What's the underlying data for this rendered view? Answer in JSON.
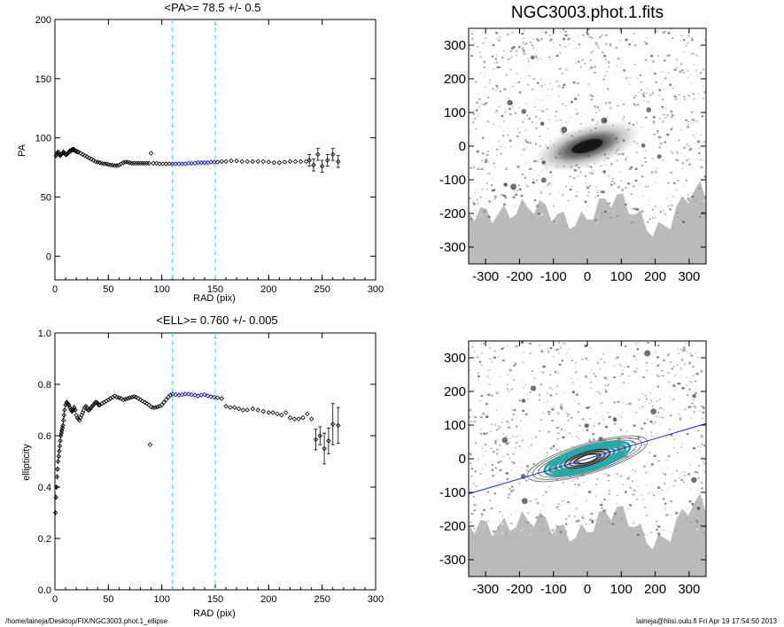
{
  "footer": {
    "left": "/home/laineja/Desktop/FIX/NGC3003.phot.1_ellipse",
    "right": "laineja@hiisi.oulu.fi  Fri Apr 19 17:54:50 2013"
  },
  "colors": {
    "axis": "#000000",
    "marker": "#000000",
    "fit_points": "#0000b0",
    "cut_lines": "#33dddd",
    "galaxy_bg": "#bbbbbb",
    "contour_fill": "#2aa6a6",
    "major_axis_line": "#2233bb"
  },
  "chart_data": [
    {
      "id": "pa",
      "type": "scatter",
      "title": "<PA>=  78.5 +/-   0.5",
      "xlabel": "RAD (pix)",
      "ylabel": "PA",
      "xlim": [
        0,
        300
      ],
      "ylim": [
        -20,
        200
      ],
      "xticks": [
        "0",
        "50",
        "100",
        "150",
        "200",
        "250",
        "300"
      ],
      "yticks": [
        "0",
        "50",
        "100",
        "150",
        "200"
      ],
      "cut_lines_x": [
        110,
        150
      ],
      "fit_range": [
        110,
        150
      ],
      "points": [
        [
          1,
          85
        ],
        [
          2,
          87
        ],
        [
          3,
          88
        ],
        [
          4,
          86
        ],
        [
          5,
          85
        ],
        [
          6,
          86
        ],
        [
          7,
          87
        ],
        [
          8,
          88
        ],
        [
          9,
          87
        ],
        [
          10,
          86
        ],
        [
          11,
          86
        ],
        [
          12,
          87
        ],
        [
          13,
          88
        ],
        [
          14,
          89
        ],
        [
          15,
          89
        ],
        [
          16,
          90
        ],
        [
          17,
          90
        ],
        [
          18,
          90
        ],
        [
          19,
          89
        ],
        [
          20,
          89
        ],
        [
          21,
          88
        ],
        [
          22,
          88
        ],
        [
          24,
          87
        ],
        [
          26,
          86
        ],
        [
          28,
          85
        ],
        [
          30,
          84
        ],
        [
          32,
          83
        ],
        [
          34,
          82
        ],
        [
          36,
          81
        ],
        [
          38,
          80
        ],
        [
          40,
          79.5
        ],
        [
          42,
          79
        ],
        [
          44,
          78.5
        ],
        [
          46,
          78
        ],
        [
          48,
          78
        ],
        [
          50,
          77.5
        ],
        [
          52,
          77
        ],
        [
          54,
          77
        ],
        [
          56,
          76.5
        ],
        [
          58,
          76.5
        ],
        [
          60,
          77
        ],
        [
          62,
          78
        ],
        [
          64,
          79
        ],
        [
          66,
          79.5
        ],
        [
          68,
          79.5
        ],
        [
          70,
          79
        ],
        [
          72,
          78.5
        ],
        [
          74,
          78.5
        ],
        [
          76,
          78.5
        ],
        [
          78,
          78.5
        ],
        [
          80,
          78.5
        ],
        [
          82,
          78.5
        ],
        [
          84,
          78.5
        ],
        [
          86,
          78.5
        ],
        [
          88,
          78.5
        ],
        [
          90,
          87
        ],
        [
          92,
          78.5
        ],
        [
          95,
          78.5
        ],
        [
          98,
          78
        ],
        [
          101,
          78
        ],
        [
          104,
          78
        ],
        [
          107,
          78
        ],
        [
          110,
          78
        ],
        [
          113,
          78
        ],
        [
          116,
          78
        ],
        [
          119,
          78
        ],
        [
          122,
          78
        ],
        [
          125,
          78.5
        ],
        [
          128,
          78.5
        ],
        [
          131,
          78.5
        ],
        [
          134,
          79
        ],
        [
          137,
          79
        ],
        [
          140,
          79
        ],
        [
          143,
          79
        ],
        [
          146,
          79.5
        ],
        [
          149,
          79.5
        ],
        [
          152,
          79.5
        ],
        [
          156,
          80
        ],
        [
          160,
          80
        ],
        [
          165,
          80.5
        ],
        [
          170,
          80.5
        ],
        [
          175,
          80
        ],
        [
          180,
          80
        ],
        [
          185,
          80
        ],
        [
          190,
          80
        ],
        [
          195,
          80
        ],
        [
          200,
          79.5
        ],
        [
          205,
          79
        ],
        [
          210,
          79
        ],
        [
          215,
          79.5
        ],
        [
          220,
          80
        ],
        [
          225,
          80
        ],
        [
          230,
          80
        ],
        [
          235,
          80
        ],
        [
          238,
          81
        ],
        [
          242,
          77
        ],
        [
          246,
          86
        ],
        [
          250,
          76
        ],
        [
          255,
          81
        ],
        [
          260,
          86
        ],
        [
          265,
          80
        ]
      ]
    },
    {
      "id": "ell",
      "type": "scatter",
      "title": "<ELL>= 0.760 +/-  0.005",
      "xlabel": "RAD (pix)",
      "ylabel": "ellipticity",
      "xlim": [
        0,
        300
      ],
      "ylim": [
        0.0,
        1.0
      ],
      "xticks": [
        "0",
        "50",
        "100",
        "150",
        "200",
        "250",
        "300"
      ],
      "yticks": [
        "0.0",
        "0.2",
        "0.4",
        "0.6",
        "0.8",
        "1.0"
      ],
      "cut_lines_x": [
        110,
        150
      ],
      "fit_range": [
        110,
        150
      ],
      "points": [
        [
          0.5,
          0.3
        ],
        [
          1,
          0.36
        ],
        [
          1.5,
          0.4
        ],
        [
          2,
          0.44
        ],
        [
          2.5,
          0.47
        ],
        [
          3,
          0.5
        ],
        [
          3.5,
          0.52
        ],
        [
          4,
          0.54
        ],
        [
          4.5,
          0.56
        ],
        [
          5,
          0.58
        ],
        [
          5.5,
          0.6
        ],
        [
          6,
          0.61
        ],
        [
          6.5,
          0.62
        ],
        [
          7,
          0.63
        ],
        [
          7.5,
          0.64
        ],
        [
          8,
          0.66
        ],
        [
          8.5,
          0.68
        ],
        [
          9,
          0.7
        ],
        [
          10,
          0.72
        ],
        [
          11,
          0.73
        ],
        [
          12,
          0.725
        ],
        [
          13,
          0.72
        ],
        [
          14,
          0.71
        ],
        [
          15,
          0.7
        ],
        [
          16,
          0.695
        ],
        [
          17,
          0.7
        ],
        [
          18,
          0.71
        ],
        [
          19,
          0.7
        ],
        [
          20,
          0.68
        ],
        [
          21,
          0.67
        ],
        [
          22,
          0.665
        ],
        [
          23,
          0.66
        ],
        [
          24,
          0.67
        ],
        [
          25,
          0.68
        ],
        [
          26,
          0.69
        ],
        [
          27,
          0.7
        ],
        [
          28,
          0.71
        ],
        [
          29,
          0.715
        ],
        [
          30,
          0.71
        ],
        [
          31,
          0.7
        ],
        [
          32,
          0.7
        ],
        [
          33,
          0.705
        ],
        [
          34,
          0.71
        ],
        [
          35,
          0.715
        ],
        [
          36,
          0.72
        ],
        [
          37,
          0.725
        ],
        [
          38,
          0.73
        ],
        [
          39,
          0.73
        ],
        [
          40,
          0.725
        ],
        [
          41,
          0.72
        ],
        [
          42,
          0.72
        ],
        [
          44,
          0.725
        ],
        [
          46,
          0.73
        ],
        [
          48,
          0.735
        ],
        [
          50,
          0.74
        ],
        [
          52,
          0.745
        ],
        [
          54,
          0.75
        ],
        [
          56,
          0.755
        ],
        [
          58,
          0.75
        ],
        [
          60,
          0.748
        ],
        [
          62,
          0.745
        ],
        [
          64,
          0.74
        ],
        [
          66,
          0.742
        ],
        [
          68,
          0.745
        ],
        [
          70,
          0.748
        ],
        [
          72,
          0.75
        ],
        [
          74,
          0.752
        ],
        [
          76,
          0.75
        ],
        [
          78,
          0.745
        ],
        [
          80,
          0.74
        ],
        [
          82,
          0.735
        ],
        [
          84,
          0.73
        ],
        [
          86,
          0.725
        ],
        [
          88,
          0.72
        ],
        [
          89,
          0.565
        ],
        [
          90,
          0.712
        ],
        [
          92,
          0.71
        ],
        [
          94,
          0.71
        ],
        [
          96,
          0.712
        ],
        [
          98,
          0.715
        ],
        [
          100,
          0.72
        ],
        [
          102,
          0.73
        ],
        [
          104,
          0.74
        ],
        [
          106,
          0.75
        ],
        [
          108,
          0.758
        ],
        [
          110,
          0.762
        ],
        [
          113,
          0.76
        ],
        [
          116,
          0.758
        ],
        [
          119,
          0.76
        ],
        [
          122,
          0.762
        ],
        [
          125,
          0.762
        ],
        [
          128,
          0.76
        ],
        [
          131,
          0.758
        ],
        [
          134,
          0.755
        ],
        [
          137,
          0.758
        ],
        [
          140,
          0.76
        ],
        [
          143,
          0.755
        ],
        [
          146,
          0.752
        ],
        [
          149,
          0.75
        ],
        [
          152,
          0.748
        ],
        [
          156,
          0.745
        ],
        [
          160,
          0.715
        ],
        [
          164,
          0.71
        ],
        [
          168,
          0.71
        ],
        [
          172,
          0.705
        ],
        [
          176,
          0.7
        ],
        [
          180,
          0.7
        ],
        [
          185,
          0.705
        ],
        [
          190,
          0.7
        ],
        [
          195,
          0.695
        ],
        [
          200,
          0.69
        ],
        [
          204,
          0.69
        ],
        [
          208,
          0.685
        ],
        [
          212,
          0.68
        ],
        [
          216,
          0.69
        ],
        [
          220,
          0.67
        ],
        [
          224,
          0.665
        ],
        [
          228,
          0.665
        ],
        [
          232,
          0.67
        ],
        [
          236,
          0.685
        ],
        [
          240,
          0.665
        ],
        [
          244,
          0.585
        ],
        [
          248,
          0.6
        ],
        [
          252,
          0.55
        ],
        [
          256,
          0.58
        ],
        [
          260,
          0.645
        ],
        [
          265,
          0.64
        ]
      ],
      "error_points": [
        [
          244,
          0.585,
          0.04
        ],
        [
          248,
          0.6,
          0.035
        ],
        [
          252,
          0.55,
          0.06
        ],
        [
          256,
          0.58,
          0.05
        ],
        [
          260,
          0.645,
          0.08
        ],
        [
          265,
          0.64,
          0.07
        ]
      ]
    }
  ],
  "images": {
    "title": "NGC3003.phot.1.fits",
    "xticks": [
      "-300",
      "-200",
      "-100",
      "0",
      "100",
      "200",
      "300"
    ],
    "yticks": [
      "300",
      "200",
      "100",
      "0",
      "-100",
      "-200",
      "-300"
    ],
    "range": [
      -350,
      350
    ],
    "galaxy_pa_deg": 78.5,
    "galaxy_ellipticity": 0.76
  }
}
